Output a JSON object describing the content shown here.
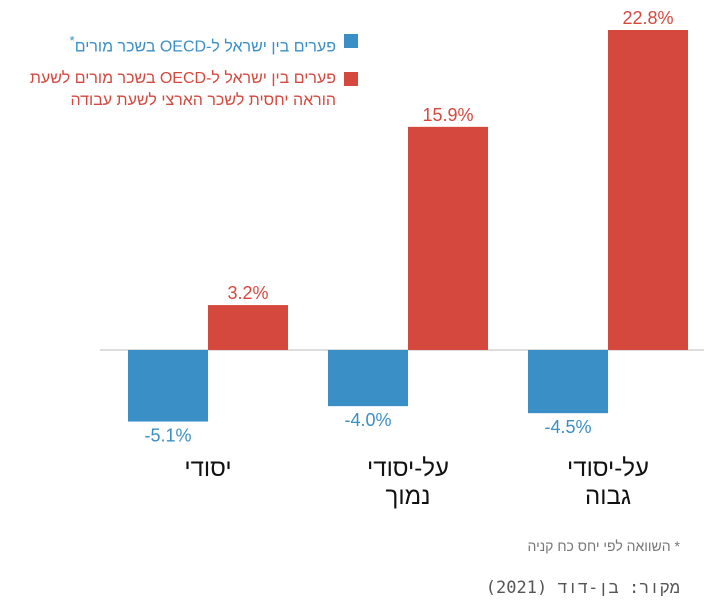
{
  "chart_data": {
    "type": "bar",
    "categories": [
      "יסודי",
      "על-יסודי\nנמוך",
      "על-יסודי\nגבוה"
    ],
    "series": [
      {
        "name": "פערים בין ישראל ל-OECD בשכר מורים",
        "values": [
          -5.1,
          -4.0,
          -4.5
        ],
        "labels": [
          "-5.1%",
          "-4.0%",
          "-4.5%"
        ],
        "color": "#3a8fc7"
      },
      {
        "name": "פערים בין ישראל ל-OECD בשכר מורים לשעת הוראה יחסית לשכר הארצי לשעת עבודה",
        "values": [
          3.2,
          15.9,
          22.8
        ],
        "labels": [
          "3.2%",
          "15.9%",
          "22.8%"
        ],
        "color": "#d5483e"
      }
    ],
    "legend": {
      "placement": "top-left",
      "blue_label": "פערים בין ישראל ל-OECD בשכר מורים",
      "blue_marker": "*",
      "red_line1": "פערים בין ישראל ל-OECD בשכר מורים לשעת",
      "red_line2": "הוראה יחסית לשכר הארצי לשעת עבודה"
    },
    "grid": false,
    "ylim": [
      -5.1,
      22.8
    ]
  },
  "footer": {
    "note": "* השוואה לפי יחס כח קניה",
    "source": "מקור: בן-דוד (2021)"
  }
}
